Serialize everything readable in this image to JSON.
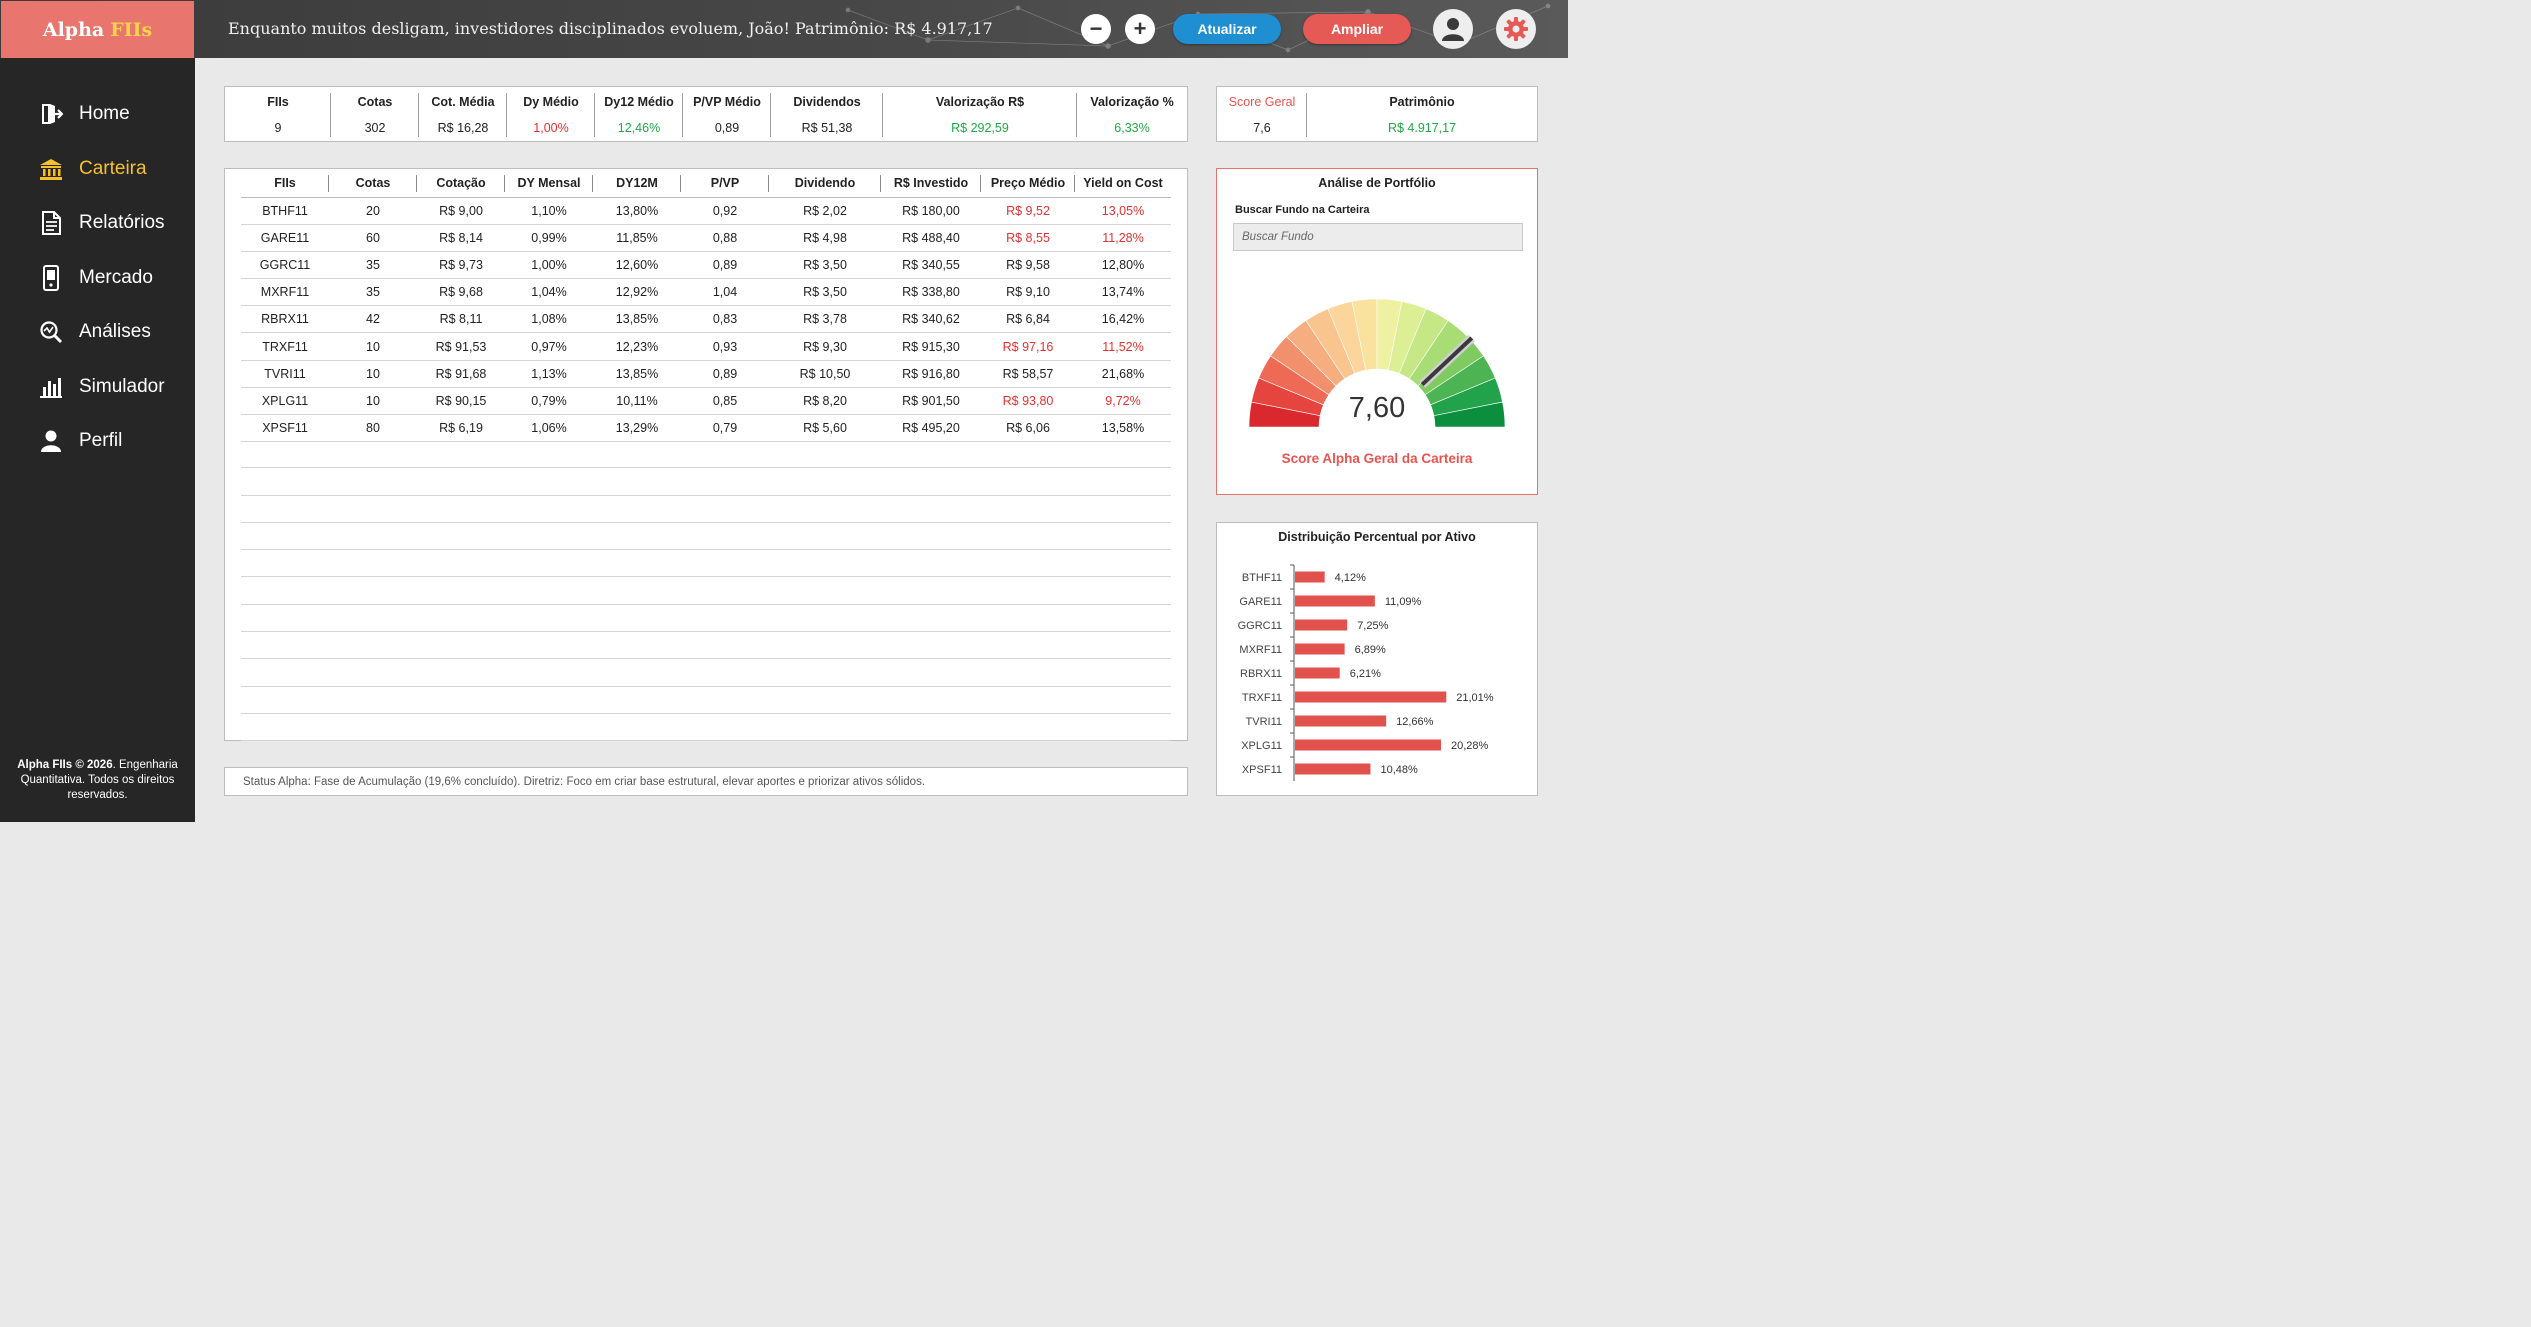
{
  "brand": {
    "name": "Alpha",
    "accent": "FIIs"
  },
  "header": {
    "headline": "Enquanto muitos desligam, investidores disciplinados evoluem, João! Patrimônio: R$ 4.917,17",
    "minus_label": "−",
    "plus_label": "+",
    "refresh_label": "Atualizar",
    "expand_label": "Ampliar"
  },
  "sidebar": {
    "items": [
      {
        "label": "Home",
        "icon": "exit-door-icon",
        "active": false
      },
      {
        "label": "Carteira",
        "icon": "bank-icon",
        "active": true
      },
      {
        "label": "Relatórios",
        "icon": "document-icon",
        "active": false
      },
      {
        "label": "Mercado",
        "icon": "phone-icon",
        "active": false
      },
      {
        "label": "Análises",
        "icon": "magnifier-chart-icon",
        "active": false
      },
      {
        "label": "Simulador",
        "icon": "bar-chart-icon",
        "active": false
      },
      {
        "label": "Perfil",
        "icon": "user-icon",
        "active": false
      }
    ],
    "footer_bold": "Alpha FIIs © 2026",
    "footer_text": ". Engenharia Quantitativa. Todos os direitos reservados."
  },
  "summary": {
    "items": [
      {
        "label": "FIIs",
        "value": "9"
      },
      {
        "label": "Cotas",
        "value": "302"
      },
      {
        "label": "Cot. Média",
        "value": "R$ 16,28"
      },
      {
        "label": "Dy Médio",
        "value": "1,00%"
      },
      {
        "label": "Dy12 Médio",
        "value": "12,46%"
      },
      {
        "label": "P/VP Médio",
        "value": "0,89"
      },
      {
        "label": "Dividendos",
        "value": "R$ 51,38"
      },
      {
        "label": "Valorização R$",
        "value": "R$ 292,59"
      },
      {
        "label": "Valorização %",
        "value": "6,33%"
      }
    ],
    "score_label": "Score Geral",
    "score_value": "7,6",
    "patrimonio_label": "Patrimônio",
    "patrimonio_value": "R$ 4.917,17"
  },
  "table": {
    "headers": [
      "FIIs",
      "Cotas",
      "Cotação",
      "DY Mensal",
      "DY12M",
      "P/VP",
      "Dividendo",
      "R$ Investido",
      "Preço Médio",
      "Yield on Cost"
    ],
    "rows": [
      [
        "BTHF11",
        "20",
        "R$ 9,00",
        "1,10%",
        "13,80%",
        "0,92",
        "R$ 2,02",
        "R$ 180,00",
        "R$ 9,52",
        "13,05%"
      ],
      [
        "GARE11",
        "60",
        "R$ 8,14",
        "0,99%",
        "11,85%",
        "0,88",
        "R$ 4,98",
        "R$ 488,40",
        "R$ 8,55",
        "11,28%"
      ],
      [
        "GGRC11",
        "35",
        "R$ 9,73",
        "1,00%",
        "12,60%",
        "0,89",
        "R$ 3,50",
        "R$ 340,55",
        "R$ 9,58",
        "12,80%"
      ],
      [
        "MXRF11",
        "35",
        "R$ 9,68",
        "1,04%",
        "12,92%",
        "1,04",
        "R$ 3,50",
        "R$ 338,80",
        "R$ 9,10",
        "13,74%"
      ],
      [
        "RBRX11",
        "42",
        "R$ 8,11",
        "1,08%",
        "13,85%",
        "0,83",
        "R$ 3,78",
        "R$ 340,62",
        "R$ 6,84",
        "16,42%"
      ],
      [
        "TRXF11",
        "10",
        "R$ 91,53",
        "0,97%",
        "12,23%",
        "0,93",
        "R$ 9,30",
        "R$ 915,30",
        "R$ 97,16",
        "11,52%"
      ],
      [
        "TVRI11",
        "10",
        "R$ 91,68",
        "1,13%",
        "13,85%",
        "0,89",
        "R$ 10,50",
        "R$ 916,80",
        "R$ 58,57",
        "21,68%"
      ],
      [
        "XPLG11",
        "10",
        "R$ 90,15",
        "0,79%",
        "10,11%",
        "0,85",
        "R$ 8,20",
        "R$ 901,50",
        "R$ 93,80",
        "9,72%"
      ],
      [
        "XPSF11",
        "80",
        "R$ 6,19",
        "1,06%",
        "13,29%",
        "0,79",
        "R$ 5,60",
        "R$ 495,20",
        "R$ 6,06",
        "13,58%"
      ]
    ],
    "red_cells": [
      [
        0,
        8
      ],
      [
        0,
        9
      ],
      [
        1,
        8
      ],
      [
        1,
        9
      ],
      [
        5,
        8
      ],
      [
        5,
        9
      ],
      [
        7,
        8
      ],
      [
        7,
        9
      ]
    ],
    "empty_rows": 11
  },
  "status": {
    "text": "Status Alpha: Fase de Acumulação (19,6% concluído). Diretriz: Foco em criar base estrutural, elevar aportes e priorizar ativos sólidos."
  },
  "analysis": {
    "title": "Análise de Portfólio",
    "search_label": "Buscar Fundo na Carteira",
    "search_placeholder": "Buscar Fundo",
    "score_display": "7,60",
    "score_value": 7.6,
    "score_max": 10,
    "caption": "Score Alpha Geral da Carteira"
  },
  "colors": {
    "accent_red": "#e8544f",
    "accent_yellow": "#f7c02b",
    "positive_green": "#21a845",
    "negative_red": "#e53030",
    "refresh_blue": "#1f8fd1"
  },
  "chart_data": {
    "type": "bar",
    "orientation": "horizontal",
    "title": "Distribuição Percentual por Ativo",
    "categories": [
      "BTHF11",
      "GARE11",
      "GGRC11",
      "MXRF11",
      "RBRX11",
      "TRXF11",
      "TVRI11",
      "XPLG11",
      "XPSF11"
    ],
    "values": [
      4.12,
      11.09,
      7.25,
      6.89,
      6.21,
      21.01,
      12.66,
      20.28,
      10.48
    ],
    "value_labels": [
      "4,12%",
      "11,09%",
      "7,25%",
      "6,89%",
      "6,21%",
      "21,01%",
      "12,66%",
      "20,28%",
      "10,48%"
    ],
    "xlim": [
      0,
      25
    ],
    "color": "#e2524d",
    "grid": false
  }
}
